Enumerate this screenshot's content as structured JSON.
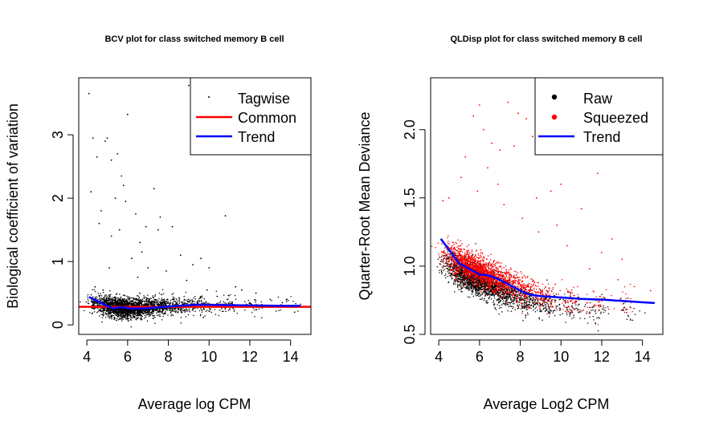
{
  "chart_data": [
    {
      "type": "scatter",
      "title": "BCV plot for class switched memory B cell",
      "xlabel": "Average log CPM",
      "ylabel": "Biological coefficient of variation",
      "xlim": [
        3.6,
        15.0
      ],
      "ylim": [
        -0.15,
        3.9
      ],
      "xticks": [
        "4",
        "6",
        "8",
        "10",
        "12",
        "14"
      ],
      "yticks": [
        "0",
        "1",
        "2",
        "3"
      ],
      "grid": false,
      "legend": {
        "position": "top-right",
        "entries": [
          "Tagwise",
          "Common",
          "Trend"
        ]
      },
      "series": [
        {
          "name": "Tagwise",
          "kind": "points",
          "color": "#000000",
          "values": [
            [
              4.1,
              3.65
            ],
            [
              4.3,
              2.95
            ],
            [
              4.9,
              2.9
            ],
            [
              5.0,
              2.95
            ],
            [
              4.5,
              2.65
            ],
            [
              4.2,
              2.1
            ],
            [
              4.7,
              1.8
            ],
            [
              5.2,
              2.6
            ],
            [
              5.5,
              2.7
            ],
            [
              5.7,
              2.35
            ],
            [
              5.8,
              2.2
            ],
            [
              6.0,
              3.32
            ],
            [
              5.4,
              2.0
            ],
            [
              5.9,
              1.95
            ],
            [
              6.4,
              1.75
            ],
            [
              6.9,
              1.55
            ],
            [
              7.3,
              2.15
            ],
            [
              7.5,
              1.5
            ],
            [
              7.6,
              1.7
            ],
            [
              8.2,
              1.55
            ],
            [
              9.0,
              3.78
            ],
            [
              6.6,
              1.3
            ],
            [
              6.2,
              1.05
            ],
            [
              5.6,
              1.5
            ],
            [
              5.2,
              1.4
            ],
            [
              4.6,
              1.6
            ],
            [
              8.6,
              1.1
            ],
            [
              9.2,
              0.95
            ],
            [
              9.6,
              1.05
            ],
            [
              10.0,
              0.9
            ],
            [
              10.8,
              1.72
            ],
            [
              11.3,
              0.6
            ],
            [
              11.6,
              0.55
            ],
            [
              12.3,
              0.5
            ],
            [
              13.0,
              0.4
            ],
            [
              13.6,
              0.35
            ],
            [
              14.2,
              0.2
            ],
            [
              7.9,
              0.85
            ],
            [
              6.5,
              0.75
            ],
            [
              7.0,
              0.9
            ],
            [
              5.1,
              0.9
            ],
            [
              4.8,
              0.55
            ],
            [
              4.4,
              0.6
            ],
            [
              6.7,
              1.15
            ],
            [
              8.9,
              0.7
            ],
            [
              9.9,
              0.55
            ],
            [
              10.4,
              0.45
            ],
            [
              12.0,
              0.35
            ]
          ],
          "cloud": [
            {
              "x": 4.6,
              "y": 0.32,
              "n": 140
            },
            {
              "x": 5.1,
              "y": 0.27,
              "n": 380
            },
            {
              "x": 5.6,
              "y": 0.23,
              "n": 620
            },
            {
              "x": 6.2,
              "y": 0.22,
              "n": 560
            },
            {
              "x": 6.9,
              "y": 0.24,
              "n": 400
            },
            {
              "x": 7.7,
              "y": 0.26,
              "n": 260
            },
            {
              "x": 8.6,
              "y": 0.27,
              "n": 160
            },
            {
              "x": 9.6,
              "y": 0.28,
              "n": 95
            },
            {
              "x": 10.8,
              "y": 0.28,
              "n": 60
            },
            {
              "x": 12.2,
              "y": 0.28,
              "n": 35
            },
            {
              "x": 13.7,
              "y": 0.28,
              "n": 18
            }
          ]
        },
        {
          "name": "Common",
          "kind": "hline",
          "color": "#ff0000",
          "value": 0.285
        },
        {
          "name": "Trend",
          "kind": "line",
          "color": "#0000ff",
          "x": [
            4.1,
            4.5,
            4.9,
            5.3,
            5.7,
            6.1,
            6.8,
            7.6,
            8.5,
            9.5,
            10.5,
            11.5,
            12.5,
            13.5,
            14.5
          ],
          "y": [
            0.44,
            0.38,
            0.31,
            0.26,
            0.28,
            0.26,
            0.26,
            0.28,
            0.3,
            0.32,
            0.315,
            0.31,
            0.305,
            0.3,
            0.3
          ]
        }
      ]
    },
    {
      "type": "scatter",
      "title": "QLDisp plot for class switched memory B cell",
      "xlabel": "Average Log2 CPM",
      "ylabel": "Quarter-Root Mean Deviance",
      "xlim": [
        3.6,
        15.0
      ],
      "ylim": [
        0.5,
        2.38
      ],
      "xticks": [
        "4",
        "6",
        "8",
        "10",
        "12",
        "14"
      ],
      "yticks": [
        "0.5",
        "1.0",
        "1.5",
        "2.0"
      ],
      "grid": false,
      "legend": {
        "position": "top-right",
        "entries": [
          "Raw",
          "Squeezed",
          "Trend"
        ]
      },
      "series": [
        {
          "name": "Raw",
          "kind": "points",
          "color": "#000000",
          "cloud": [
            {
              "x": 4.6,
              "y": 1.02,
              "n": 160
            },
            {
              "x": 5.2,
              "y": 0.95,
              "n": 420
            },
            {
              "x": 5.8,
              "y": 0.9,
              "n": 520
            },
            {
              "x": 6.5,
              "y": 0.85,
              "n": 420
            },
            {
              "x": 7.3,
              "y": 0.8,
              "n": 300
            },
            {
              "x": 8.2,
              "y": 0.75,
              "n": 190
            },
            {
              "x": 9.2,
              "y": 0.72,
              "n": 110
            },
            {
              "x": 10.4,
              "y": 0.7,
              "n": 70
            },
            {
              "x": 11.8,
              "y": 0.68,
              "n": 40
            },
            {
              "x": 13.3,
              "y": 0.67,
              "n": 22
            }
          ]
        },
        {
          "name": "Squeezed",
          "kind": "points",
          "color": "#ff0000",
          "values": [
            [
              6.0,
              2.18
            ],
            [
              7.4,
              2.2
            ],
            [
              7.9,
              2.12
            ],
            [
              8.3,
              2.08
            ],
            [
              8.6,
              1.95
            ],
            [
              9.2,
              2.03
            ],
            [
              9.6,
              1.97
            ],
            [
              5.7,
              2.1
            ],
            [
              6.2,
              2.0
            ],
            [
              6.6,
              1.9
            ],
            [
              7.0,
              1.85
            ],
            [
              7.7,
              1.88
            ],
            [
              5.3,
              1.8
            ],
            [
              5.1,
              1.65
            ],
            [
              4.5,
              1.5
            ],
            [
              4.2,
              1.48
            ],
            [
              10.5,
              1.85
            ],
            [
              11.8,
              1.68
            ],
            [
              10.0,
              1.6
            ],
            [
              9.5,
              1.55
            ],
            [
              8.8,
              1.5
            ],
            [
              11.0,
              1.42
            ],
            [
              12.5,
              1.2
            ],
            [
              13.0,
              1.05
            ],
            [
              12.0,
              1.1
            ],
            [
              11.4,
              0.98
            ],
            [
              13.6,
              0.85
            ],
            [
              14.4,
              0.82
            ],
            [
              12.8,
              0.9
            ],
            [
              6.9,
              1.6
            ],
            [
              7.2,
              1.45
            ],
            [
              8.1,
              1.35
            ],
            [
              6.4,
              1.72
            ],
            [
              5.9,
              1.55
            ],
            [
              8.9,
              1.25
            ],
            [
              9.8,
              1.3
            ],
            [
              10.3,
              1.15
            ]
          ],
          "cloud": [
            {
              "x": 4.6,
              "y": 1.1,
              "n": 130
            },
            {
              "x": 5.2,
              "y": 1.02,
              "n": 360
            },
            {
              "x": 5.8,
              "y": 0.98,
              "n": 460
            },
            {
              "x": 6.5,
              "y": 0.93,
              "n": 380
            },
            {
              "x": 7.3,
              "y": 0.88,
              "n": 280
            },
            {
              "x": 8.2,
              "y": 0.82,
              "n": 170
            },
            {
              "x": 9.2,
              "y": 0.78,
              "n": 100
            },
            {
              "x": 10.4,
              "y": 0.76,
              "n": 65
            },
            {
              "x": 11.8,
              "y": 0.74,
              "n": 38
            },
            {
              "x": 13.3,
              "y": 0.73,
              "n": 20
            }
          ]
        },
        {
          "name": "Trend",
          "kind": "line",
          "color": "#0000ff",
          "x": [
            4.1,
            4.5,
            5.0,
            5.5,
            6.0,
            6.5,
            7.0,
            7.5,
            8.0,
            8.5,
            9.0,
            10.0,
            11.0,
            12.0,
            13.0,
            14.0,
            14.6
          ],
          "y": [
            1.2,
            1.12,
            1.02,
            0.98,
            0.94,
            0.93,
            0.9,
            0.86,
            0.82,
            0.79,
            0.78,
            0.77,
            0.76,
            0.755,
            0.745,
            0.735,
            0.73
          ]
        }
      ]
    }
  ]
}
